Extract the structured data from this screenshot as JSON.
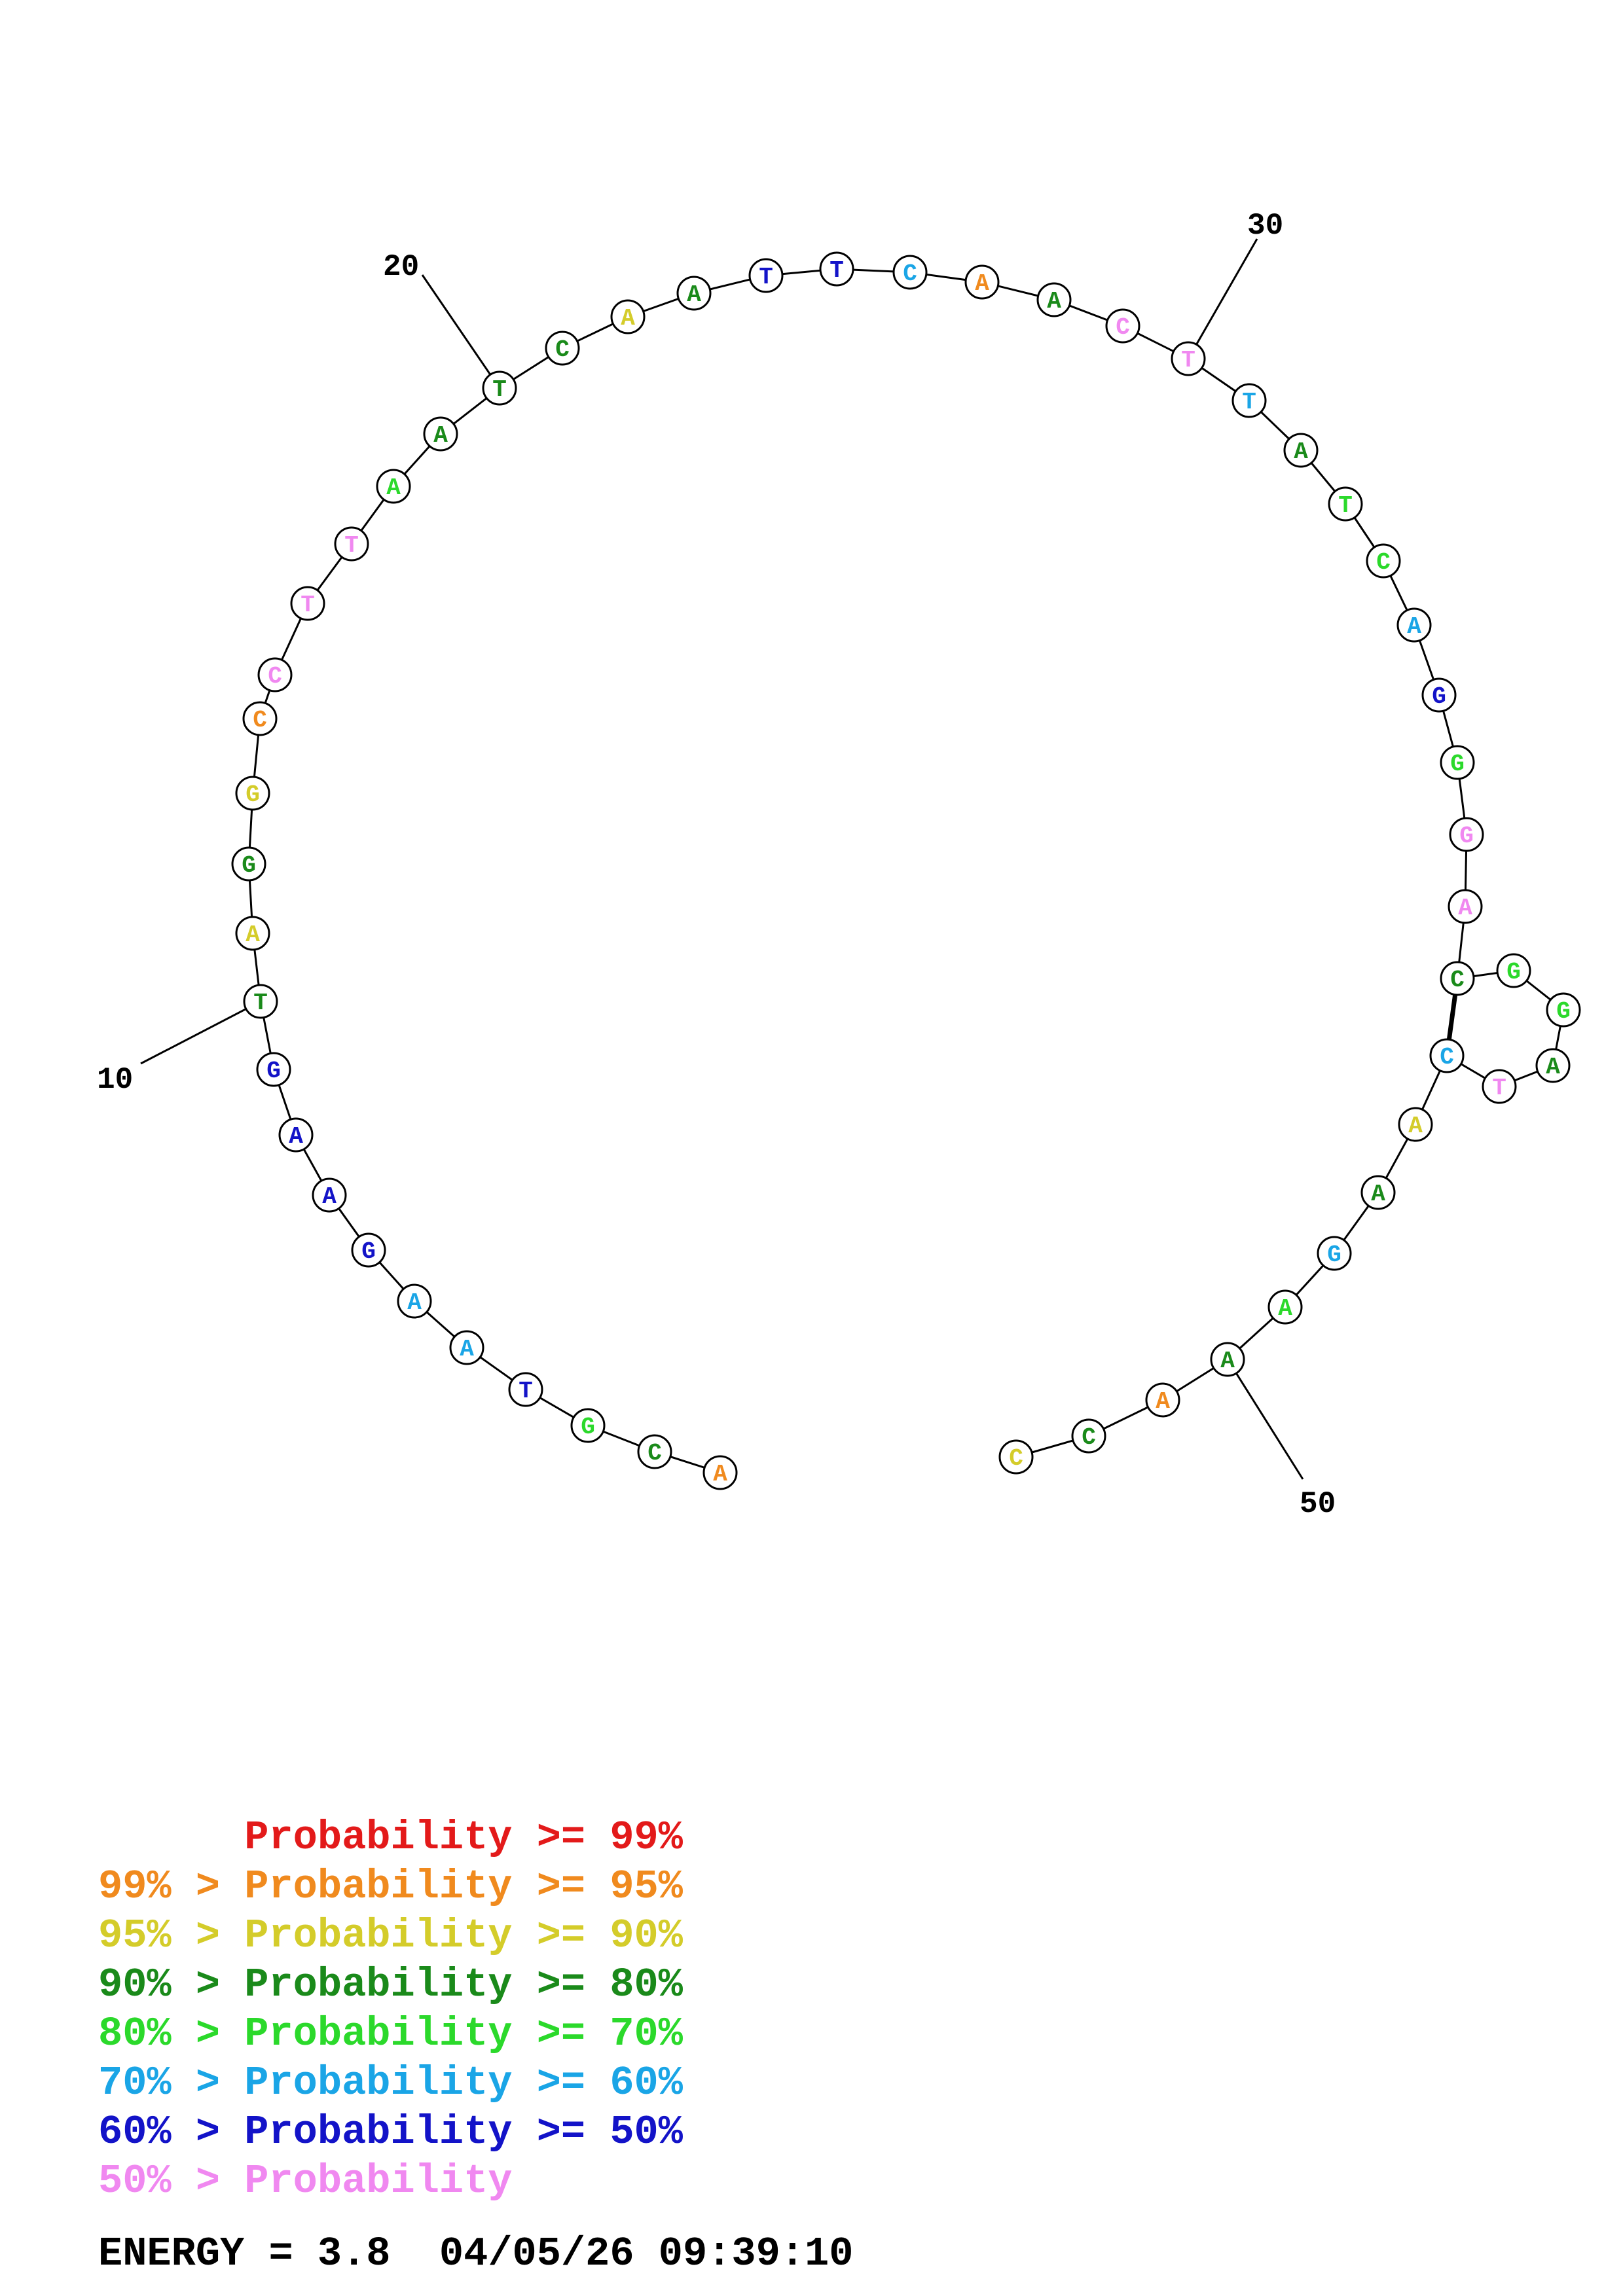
{
  "structure": {
    "sequence": [
      "A",
      "C",
      "G",
      "T",
      "A",
      "A",
      "G",
      "A",
      "A",
      "G",
      "T",
      "A",
      "G",
      "G",
      "C",
      "C",
      "T",
      "T",
      "A",
      "A",
      "T",
      "C",
      "A",
      "A",
      "T",
      "T",
      "C",
      "A",
      "A",
      "C",
      "T",
      "T",
      "A",
      "T",
      "C",
      "A",
      "G",
      "G",
      "G",
      "A",
      "C",
      "G",
      "G",
      "A",
      "T",
      "C",
      "A",
      "A",
      "G",
      "A",
      "A",
      "A",
      "C",
      "C"
    ],
    "colors": [
      "#f08a1e",
      "#1a8a1a",
      "#2bd92b",
      "#1313c8",
      "#1aa5e6",
      "#1aa5e6",
      "#1313c8",
      "#1313c8",
      "#1313c8",
      "#1313c8",
      "#1a8a1a",
      "#d4cc2a",
      "#1a8a1a",
      "#d4cc2a",
      "#f08a1e",
      "#f088f0",
      "#f088f0",
      "#f088f0",
      "#2bd92b",
      "#1a8a1a",
      "#1a8a1a",
      "#1a8a1a",
      "#d4cc2a",
      "#1a8a1a",
      "#1313c8",
      "#1313c8",
      "#1aa5e6",
      "#f08a1e",
      "#1a8a1a",
      "#f088f0",
      "#f088f0",
      "#1aa5e6",
      "#1a8a1a",
      "#2bd92b",
      "#2bd92b",
      "#1aa5e6",
      "#1313c8",
      "#2bd92b",
      "#f088f0",
      "#f088f0",
      "#1a8a1a",
      "#2bd92b",
      "#2bd92b",
      "#1a8a1a",
      "#f088f0",
      "#1aa5e6",
      "#d4cc2a",
      "#1a8a1a",
      "#1aa5e6",
      "#2bd92b",
      "#1a8a1a",
      "#f08a1e",
      "#1a8a1a",
      "#d4cc2a"
    ],
    "pairs": [
      [
        40,
        45
      ]
    ],
    "number_labels": [
      {
        "index": 10,
        "text": "10"
      },
      {
        "index": 20,
        "text": "20"
      },
      {
        "index": 30,
        "text": "30"
      },
      {
        "index": 50,
        "text": "50"
      }
    ]
  },
  "legend": [
    {
      "prefix": "",
      "text": "Probability >= 99%",
      "color": "#e31a1a"
    },
    {
      "prefix": "99% > ",
      "text": "Probability >= 95%",
      "color": "#f08a1e"
    },
    {
      "prefix": "95% > ",
      "text": "Probability >= 90%",
      "color": "#d4cc2a"
    },
    {
      "prefix": "90% > ",
      "text": "Probability >= 80%",
      "color": "#1a8a1a"
    },
    {
      "prefix": "80% > ",
      "text": "Probability >= 70%",
      "color": "#2bd92b"
    },
    {
      "prefix": "70% > ",
      "text": "Probability >= 60%",
      "color": "#1aa5e6"
    },
    {
      "prefix": "60% > ",
      "text": "Probability >= 50%",
      "color": "#1313c8"
    },
    {
      "prefix": "50% > ",
      "text": "Probability",
      "color": "#f088f0"
    }
  ],
  "footer": {
    "energy": "ENERGY = 3.8",
    "timestamp": "04/05/26 09:39:10"
  }
}
